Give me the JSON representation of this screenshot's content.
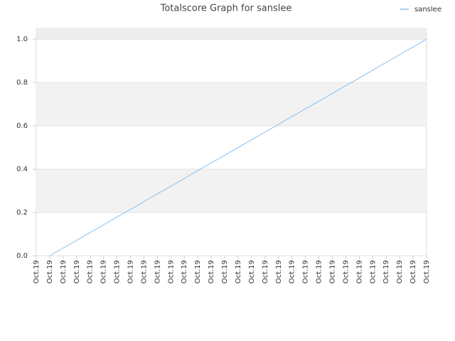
{
  "chart_data": {
    "type": "line",
    "title": "Totalscore Graph for sanslee",
    "categories": [
      "Oct.19",
      "Oct.19",
      "Oct.19",
      "Oct.19",
      "Oct.19",
      "Oct.19",
      "Oct.19",
      "Oct.19",
      "Oct.19",
      "Oct.19",
      "Oct.19",
      "Oct.19",
      "Oct.19",
      "Oct.19",
      "Oct.19",
      "Oct.19",
      "Oct.19",
      "Oct.19",
      "Oct.19",
      "Oct.19",
      "Oct.19",
      "Oct.19",
      "Oct.19",
      "Oct.19",
      "Oct.19",
      "Oct.19",
      "Oct.19",
      "Oct.19",
      "Oct.19",
      "Oct.19"
    ],
    "series": [
      {
        "name": "sanslee",
        "color": "#88c0ee",
        "values": [
          null,
          0,
          0.036,
          0.071,
          0.107,
          0.143,
          0.179,
          0.214,
          0.25,
          0.286,
          0.321,
          0.357,
          0.393,
          0.429,
          0.464,
          0.5,
          0.536,
          0.571,
          0.607,
          0.643,
          0.679,
          0.714,
          0.75,
          0.786,
          0.821,
          0.857,
          0.893,
          0.929,
          0.964,
          1
        ]
      }
    ],
    "ylim": [
      0,
      1.05
    ],
    "yticks": [
      {
        "value": 0,
        "label": "0.0"
      },
      0.2,
      0.4,
      0.6,
      0.8,
      {
        "value": 1,
        "label": "1.0"
      }
    ],
    "grid": true,
    "legend": "top-right"
  }
}
